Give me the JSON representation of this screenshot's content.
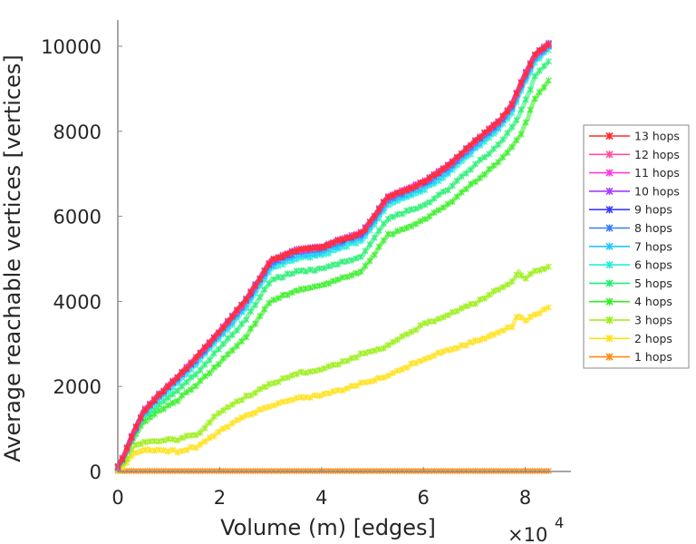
{
  "chart_data": {
    "type": "line",
    "title": "",
    "xlabel": "Volume (m) [edges]",
    "ylabel": "Average reachable vertices [vertices]",
    "x_multiplier_label": {
      "base": "×10",
      "exp": "4"
    },
    "xlim": [
      0,
      8.9
    ],
    "ylim": [
      0,
      10600
    ],
    "x_ticks": [
      0,
      2,
      4,
      6,
      8
    ],
    "x_tick_labels": [
      "0",
      "2",
      "4",
      "6",
      "8"
    ],
    "y_ticks": [
      0,
      2000,
      4000,
      6000,
      8000,
      10000
    ],
    "y_tick_labels": [
      "0",
      "2000",
      "4000",
      "6000",
      "8000",
      "10000"
    ],
    "grid": false,
    "legend_position": "outside-right",
    "x": [
      0,
      0.15,
      0.3,
      0.5,
      0.8,
      1.2,
      1.6,
      2.0,
      2.5,
      3.0,
      3.5,
      4.0,
      4.5,
      4.8,
      5.0,
      5.3,
      6.0,
      6.5,
      7.0,
      7.5,
      7.75,
      7.85,
      8.0,
      8.2,
      8.5
    ],
    "series": [
      {
        "name": "13 hops",
        "color": "#ff2a2a",
        "values": [
          100,
          450,
          900,
          1400,
          1800,
          2250,
          2750,
          3300,
          4000,
          4950,
          5200,
          5280,
          5500,
          5620,
          5950,
          6450,
          6800,
          7200,
          7750,
          8250,
          8650,
          8950,
          9350,
          9800,
          10100
        ]
      },
      {
        "name": "12 hops",
        "color": "#ff4fa0",
        "values": [
          100,
          450,
          900,
          1400,
          1800,
          2250,
          2750,
          3300,
          4000,
          4950,
          5200,
          5280,
          5500,
          5620,
          5950,
          6450,
          6800,
          7200,
          7750,
          8250,
          8650,
          8950,
          9350,
          9800,
          10100
        ]
      },
      {
        "name": "11 hops",
        "color": "#ff3ad8",
        "values": [
          100,
          450,
          900,
          1400,
          1800,
          2250,
          2750,
          3300,
          4000,
          4950,
          5200,
          5280,
          5500,
          5620,
          5950,
          6450,
          6800,
          7200,
          7750,
          8250,
          8650,
          8950,
          9350,
          9800,
          10100
        ]
      },
      {
        "name": "10 hops",
        "color": "#a53cff",
        "values": [
          100,
          450,
          900,
          1400,
          1800,
          2250,
          2750,
          3300,
          4000,
          4950,
          5200,
          5280,
          5500,
          5620,
          5950,
          6450,
          6800,
          7200,
          7750,
          8250,
          8650,
          8950,
          9350,
          9800,
          10100
        ]
      },
      {
        "name": "9 hops",
        "color": "#3a3aff",
        "values": [
          100,
          450,
          900,
          1400,
          1800,
          2250,
          2750,
          3300,
          4000,
          4950,
          5200,
          5280,
          5500,
          5620,
          5950,
          6450,
          6800,
          7200,
          7750,
          8250,
          8650,
          8950,
          9350,
          9800,
          10100
        ]
      },
      {
        "name": "8 hops",
        "color": "#3a7aff",
        "values": [
          100,
          440,
          880,
          1380,
          1770,
          2220,
          2710,
          3260,
          3950,
          4900,
          5150,
          5230,
          5450,
          5570,
          5900,
          6400,
          6750,
          7150,
          7700,
          8200,
          8600,
          8900,
          9300,
          9760,
          10060
        ]
      },
      {
        "name": "7 hops",
        "color": "#22c8ff",
        "values": [
          100,
          430,
          860,
          1350,
          1730,
          2180,
          2660,
          3200,
          3880,
          4830,
          5080,
          5160,
          5380,
          5500,
          5830,
          6330,
          6680,
          7080,
          7630,
          8130,
          8530,
          8830,
          9230,
          9700,
          10020
        ]
      },
      {
        "name": "6 hops",
        "color": "#22eed8",
        "values": [
          100,
          420,
          840,
          1320,
          1690,
          2130,
          2600,
          3140,
          3810,
          4760,
          5010,
          5090,
          5310,
          5430,
          5760,
          6260,
          6610,
          7010,
          7560,
          8060,
          8460,
          8760,
          9160,
          9640,
          9980
        ]
      },
      {
        "name": "5 hops",
        "color": "#22ee70",
        "values": [
          100,
          400,
          800,
          1250,
          1560,
          1950,
          2380,
          2900,
          3550,
          4480,
          4700,
          4760,
          4960,
          5050,
          5450,
          5950,
          6250,
          6650,
          7200,
          7700,
          8100,
          8300,
          8700,
          9300,
          9700
        ]
      },
      {
        "name": "4 hops",
        "color": "#33ee22",
        "values": [
          100,
          380,
          750,
          1150,
          1400,
          1700,
          2100,
          2550,
          3150,
          4000,
          4250,
          4370,
          4580,
          4700,
          5050,
          5550,
          5900,
          6300,
          6800,
          7300,
          7650,
          7800,
          8150,
          8800,
          9230
        ]
      },
      {
        "name": "3 hops",
        "color": "#99ee11",
        "values": [
          50,
          250,
          580,
          700,
          720,
          760,
          900,
          1400,
          1750,
          2050,
          2300,
          2400,
          2600,
          2780,
          2850,
          2950,
          3450,
          3700,
          3950,
          4300,
          4450,
          4700,
          4550,
          4700,
          4850
        ]
      },
      {
        "name": "2 hops",
        "color": "#ffe011",
        "values": [
          30,
          150,
          400,
          530,
          500,
          470,
          600,
          950,
          1300,
          1550,
          1700,
          1800,
          1950,
          2080,
          2150,
          2250,
          2650,
          2850,
          3050,
          3300,
          3400,
          3700,
          3550,
          3700,
          3870
        ]
      },
      {
        "name": "1 hops",
        "color": "#ff8a11",
        "values": [
          10,
          10,
          10,
          10,
          10,
          10,
          10,
          10,
          10,
          10,
          10,
          10,
          10,
          10,
          10,
          10,
          10,
          10,
          10,
          10,
          10,
          10,
          10,
          10,
          10
        ]
      }
    ]
  }
}
